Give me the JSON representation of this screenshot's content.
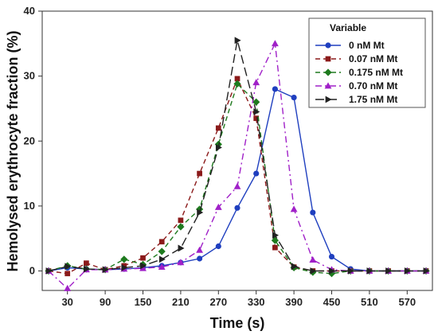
{
  "chart_data": {
    "type": "line",
    "xlabel": "Time (s)",
    "ylabel": "Hemolysed erythrocyte fraction (%)",
    "xlim": [
      0,
      600
    ],
    "ylim": [
      -3,
      40
    ],
    "xticks": [
      30,
      90,
      150,
      210,
      270,
      330,
      390,
      450,
      510,
      570
    ],
    "yticks": [
      0,
      10,
      20,
      30,
      40
    ],
    "grid": false,
    "legend": {
      "title": "Variable",
      "position": "top-right"
    },
    "series": [
      {
        "name": "0 nM Mt",
        "color": "#1f3fbf",
        "marker": "circle",
        "dash": "solid",
        "x": [
          0,
          30,
          60,
          90,
          120,
          150,
          180,
          210,
          240,
          270,
          300,
          330,
          360,
          390,
          420,
          450,
          480,
          510,
          540,
          570,
          600
        ],
        "y": [
          0,
          0.5,
          0.3,
          0.2,
          0.3,
          0.5,
          0.8,
          1.3,
          1.9,
          3.8,
          9.7,
          15,
          28,
          26.7,
          9,
          2.2,
          0.3,
          0,
          0,
          0,
          0
        ]
      },
      {
        "name": "0.07 nM Mt",
        "color": "#8b1a1a",
        "marker": "square",
        "dash": "dash",
        "x": [
          0,
          30,
          60,
          90,
          120,
          150,
          180,
          210,
          240,
          270,
          300,
          330,
          360,
          390,
          420,
          450,
          480,
          510,
          540,
          570,
          600
        ],
        "y": [
          0,
          -0.4,
          1.2,
          0.2,
          0.8,
          2,
          4.5,
          7.8,
          15,
          22,
          29.6,
          23.5,
          3.6,
          0.6,
          0,
          0,
          0,
          0,
          0,
          0,
          0
        ]
      },
      {
        "name": "0.175 nM Mt",
        "color": "#1e7a1e",
        "marker": "diamond",
        "dash": "dash",
        "x": [
          0,
          30,
          60,
          90,
          120,
          150,
          180,
          210,
          240,
          270,
          300,
          330,
          360,
          390,
          420,
          450,
          480,
          510,
          540,
          570,
          600
        ],
        "y": [
          0,
          0.8,
          0.3,
          0.2,
          1.8,
          1,
          3,
          6.8,
          9.5,
          19.5,
          28.8,
          26,
          4.7,
          0.5,
          -0.2,
          -0.4,
          0,
          0,
          0,
          0,
          0
        ]
      },
      {
        "name": "0.70 nM Mt",
        "color": "#a020c8",
        "marker": "triangle-up",
        "dash": "dashdot",
        "x": [
          0,
          30,
          60,
          90,
          120,
          150,
          180,
          210,
          240,
          270,
          300,
          330,
          360,
          390,
          420,
          450,
          480,
          510,
          540,
          570,
          600
        ],
        "y": [
          0,
          -2.7,
          0.2,
          0.2,
          0.3,
          0.4,
          0.6,
          1.3,
          3.2,
          9.8,
          13,
          29,
          35,
          9.5,
          1.7,
          0.2,
          0,
          0,
          0,
          0,
          0
        ]
      },
      {
        "name": "1.75 nM Mt",
        "color": "#222222",
        "marker": "triangle-right",
        "dash": "longdash",
        "x": [
          0,
          30,
          60,
          90,
          120,
          150,
          180,
          210,
          240,
          270,
          300,
          330,
          360,
          390,
          420,
          450,
          480,
          510,
          540,
          570,
          600
        ],
        "y": [
          0,
          0.7,
          0.3,
          0.2,
          0.5,
          0.8,
          1.8,
          3.5,
          9,
          19,
          35.5,
          24.5,
          5.5,
          0.7,
          0,
          0,
          0,
          0,
          0,
          0,
          0
        ]
      }
    ]
  }
}
